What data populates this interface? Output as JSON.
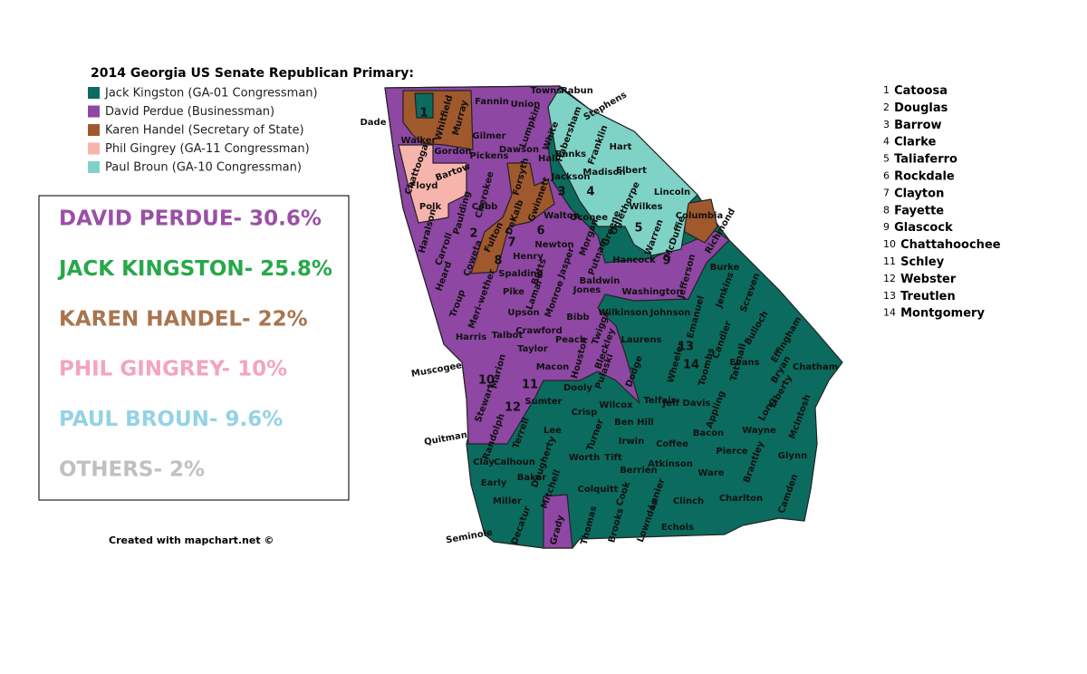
{
  "title": "2014 Georgia US Senate Republican Primary:",
  "legend": [
    {
      "label": "Jack Kingston (GA-01 Congressman)",
      "color": "#0b6b5e"
    },
    {
      "label": "David Perdue (Businessman)",
      "color": "#8e47a3"
    },
    {
      "label": "Karen Handel (Secretary of State)",
      "color": "#a0592d"
    },
    {
      "label": "Phil Gingrey (GA-11 Congressman)",
      "color": "#f7b4ac"
    },
    {
      "label": "Paul Broun (GA-10 Congressman)",
      "color": "#7fd3c6"
    }
  ],
  "results": [
    {
      "text": "DAVID PERDUE- 30.6%",
      "color": "#9b4fa6"
    },
    {
      "text": "JACK KINGSTON- 25.8%",
      "color": "#27a84a"
    },
    {
      "text": "KAREN HANDEL- 22%",
      "color": "#a9754f"
    },
    {
      "text": "PHIL GINGREY- 10%",
      "color": "#f4a3c3"
    },
    {
      "text": "PAUL BROUN- 9.6%",
      "color": "#93d3e5"
    },
    {
      "text": "OTHERS- 2%",
      "color": "#c0c0c0"
    }
  ],
  "credit": "Created with mapchart.net ©",
  "key": [
    {
      "number": 1,
      "name": "Catoosa"
    },
    {
      "number": 2,
      "name": "Douglas"
    },
    {
      "number": 3,
      "name": "Barrow"
    },
    {
      "number": 4,
      "name": "Clarke"
    },
    {
      "number": 5,
      "name": "Taliaferro"
    },
    {
      "number": 6,
      "name": "Rockdale"
    },
    {
      "number": 7,
      "name": "Clayton"
    },
    {
      "number": 8,
      "name": "Fayette"
    },
    {
      "number": 9,
      "name": "Glascock"
    },
    {
      "number": 10,
      "name": "Chattahoochee"
    },
    {
      "number": 11,
      "name": "Schley"
    },
    {
      "number": 12,
      "name": "Webster"
    },
    {
      "number": 13,
      "name": "Treutlen"
    },
    {
      "number": 14,
      "name": "Montgomery"
    }
  ],
  "outside_labels": [
    "Dade",
    "Stephens",
    "Muscogee",
    "Quitman",
    "Seminole"
  ],
  "counties": [
    "Walker",
    "Whitfield",
    "Murray",
    "Fannin",
    "Union",
    "Towns",
    "Rabun",
    "Gilmer",
    "Lumpkin",
    "White",
    "Habersham",
    "Gordon",
    "Pickens",
    "Dawson",
    "Hall",
    "Banks",
    "Franklin",
    "Hart",
    "Chattooga",
    "Floyd",
    "Bartow",
    "Cherokee",
    "Forsyth",
    "Jackson",
    "Madison",
    "Elbert",
    "Polk",
    "Paulding",
    "Cobb",
    "Gwinnett",
    "Oglethorpe",
    "Lincoln",
    "Wilkes",
    "Haralson",
    "Walton",
    "Oconee",
    "Greene",
    "Morgan",
    "Columbia",
    "Fulton",
    "DeKalb",
    "Carroll",
    "Newton",
    "McDuffie",
    "Warren",
    "Richmond",
    "Henry",
    "Coweta",
    "Putnam",
    "Hancock",
    "Spalding",
    "Butts",
    "Jasper",
    "Heard",
    "Burke",
    "Jefferson",
    "Washington",
    "Baldwin",
    "Troup",
    "Meri-wether",
    "Pike",
    "Lamar",
    "Monroe",
    "Jones",
    "Jenkins",
    "Screven",
    "Upson",
    "Wilkinson",
    "Johnson",
    "Bibb",
    "Twiggs",
    "Emanuel",
    "Crawford",
    "Bulloch",
    "Effingham",
    "Harris",
    "Talbot",
    "Taylor",
    "Peach",
    "Laurens",
    "Candler",
    "Houston",
    "Bleckley",
    "Macon",
    "Marion",
    "Tattnall",
    "Evans",
    "Bryan",
    "Chatham",
    "Wheeler",
    "Toombs",
    "Dodge",
    "Pulaski",
    "Liberty",
    "Dooly",
    "Stewart",
    "Sumter",
    "Wilcox",
    "Telfair",
    "Jeff Davis",
    "Appling",
    "Long",
    "McIntosh",
    "Crisp",
    "Ben Hill",
    "Lee",
    "Randolph",
    "Terrell",
    "Turner",
    "Irwin",
    "Wayne",
    "Bacon",
    "Coffee",
    "Pierce",
    "Glynn",
    "Clay",
    "Calhoun",
    "Dougherty",
    "Worth",
    "Tift",
    "Atkinson",
    "Brantley",
    "Berrien",
    "Ware",
    "Baker",
    "Early",
    "Camden",
    "Mitchell",
    "Colquitt",
    "Cook",
    "Lanier",
    "Clinch",
    "Charlton",
    "Miller",
    "Decatur",
    "Grady",
    "Thomas",
    "Brooks",
    "Lowndes",
    "Echols"
  ]
}
